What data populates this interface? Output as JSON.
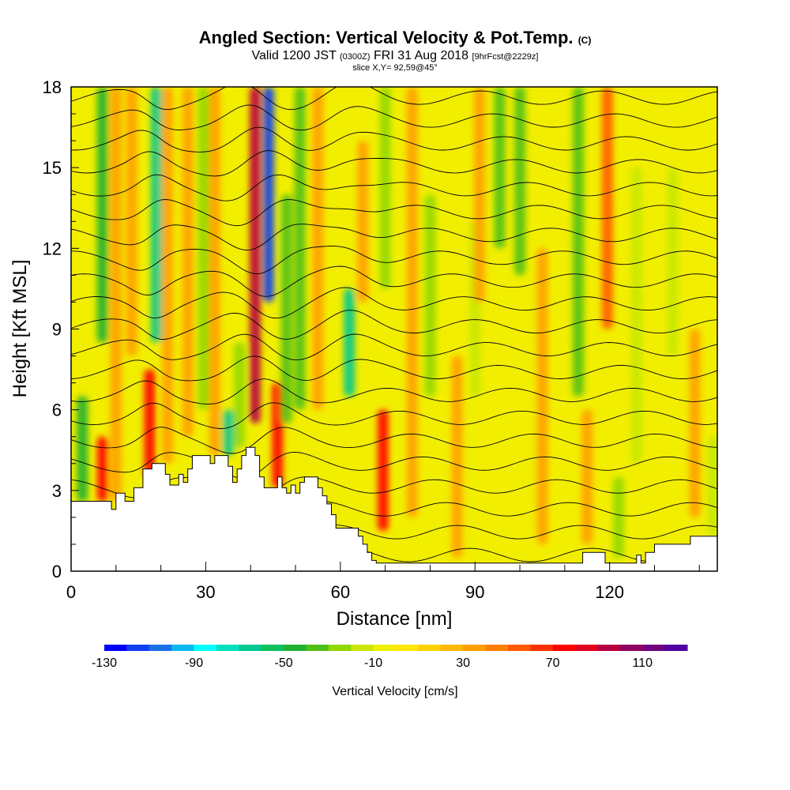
{
  "title": {
    "main": "Angled Section: Vertical Velocity & Pot.Temp.",
    "main_suffix": "(C)",
    "valid_prefix": "Valid 1200 JST",
    "valid_utc": "(0300Z)",
    "valid_date": "FRI 31 Aug 2018",
    "forecast": "[9hrFcst@2229z]",
    "slice": "slice X,Y= 92,59@45°"
  },
  "chart_data": {
    "type": "heatmap",
    "xlabel": "Distance [nm]",
    "ylabel": "Height [Kft MSL]",
    "xlim": [
      0,
      144
    ],
    "ylim": [
      0,
      18
    ],
    "x_ticks": [
      0,
      30,
      60,
      90,
      120
    ],
    "y_ticks": [
      0,
      3,
      6,
      9,
      12,
      15,
      18
    ],
    "colorbar": {
      "title": "Vertical Velocity [cm/s]",
      "min": -130,
      "max": 130,
      "step": 10,
      "labels": [
        -130,
        -90,
        -50,
        -10,
        30,
        70,
        110
      ],
      "colors": [
        "#0000ff",
        "#1040f0",
        "#1c70e8",
        "#0bb8f0",
        "#00ffff",
        "#00e0c0",
        "#00c890",
        "#0cc060",
        "#20b030",
        "#50c018",
        "#90d800",
        "#c8e800",
        "#f0f000",
        "#ffe800",
        "#ffd000",
        "#ffb800",
        "#ff9e00",
        "#ff8000",
        "#ff5a00",
        "#ff3000",
        "#ff0000",
        "#e00020",
        "#b80040",
        "#900060",
        "#700080",
        "#5000a0"
      ]
    },
    "background_color": "#f2ee00",
    "terrain_height_kft": [
      [
        0,
        2.6
      ],
      [
        9,
        2.6
      ],
      [
        9,
        2.3
      ],
      [
        10,
        2.3
      ],
      [
        10,
        2.9
      ],
      [
        12,
        2.9
      ],
      [
        12,
        2.6
      ],
      [
        14,
        2.6
      ],
      [
        14,
        3.1
      ],
      [
        16,
        3.1
      ],
      [
        16,
        3.8
      ],
      [
        18,
        3.8
      ],
      [
        18,
        4.0
      ],
      [
        21,
        4.0
      ],
      [
        21,
        3.6
      ],
      [
        22,
        3.6
      ],
      [
        22,
        3.2
      ],
      [
        24,
        3.2
      ],
      [
        24,
        3.6
      ],
      [
        25,
        3.6
      ],
      [
        25,
        3.3
      ],
      [
        26,
        3.3
      ],
      [
        26,
        3.8
      ],
      [
        27,
        3.8
      ],
      [
        27,
        4.3
      ],
      [
        31,
        4.3
      ],
      [
        31,
        4.0
      ],
      [
        32,
        4.0
      ],
      [
        32,
        4.3
      ],
      [
        35,
        4.3
      ],
      [
        35,
        3.9
      ],
      [
        36,
        3.9
      ],
      [
        36,
        3.3
      ],
      [
        37,
        3.3
      ],
      [
        37,
        3.8
      ],
      [
        38,
        3.8
      ],
      [
        38,
        4.3
      ],
      [
        39,
        4.3
      ],
      [
        39,
        4.6
      ],
      [
        41,
        4.6
      ],
      [
        41,
        4.3
      ],
      [
        42,
        4.3
      ],
      [
        42,
        3.5
      ],
      [
        43,
        3.5
      ],
      [
        43,
        3.1
      ],
      [
        46,
        3.1
      ],
      [
        46,
        3.5
      ],
      [
        47,
        3.5
      ],
      [
        47,
        3.1
      ],
      [
        48,
        3.1
      ],
      [
        48,
        2.9
      ],
      [
        49,
        2.9
      ],
      [
        49,
        3.2
      ],
      [
        50,
        3.2
      ],
      [
        50,
        2.9
      ],
      [
        51,
        2.9
      ],
      [
        51,
        3.3
      ],
      [
        52,
        3.3
      ],
      [
        52,
        3.5
      ],
      [
        55,
        3.5
      ],
      [
        55,
        3.1
      ],
      [
        56,
        3.1
      ],
      [
        56,
        2.8
      ],
      [
        57,
        2.8
      ],
      [
        57,
        2.5
      ],
      [
        58,
        2.5
      ],
      [
        58,
        2.1
      ],
      [
        59,
        2.1
      ],
      [
        59,
        1.6
      ],
      [
        64,
        1.6
      ],
      [
        64,
        1.3
      ],
      [
        65,
        1.3
      ],
      [
        65,
        1.0
      ],
      [
        66,
        1.0
      ],
      [
        66,
        0.7
      ],
      [
        67,
        0.7
      ],
      [
        67,
        0.4
      ],
      [
        68,
        0.4
      ],
      [
        68,
        0.3
      ],
      [
        114,
        0.3
      ],
      [
        114,
        0.7
      ],
      [
        119,
        0.7
      ],
      [
        119,
        0.3
      ],
      [
        126,
        0.3
      ],
      [
        126,
        0.6
      ],
      [
        127,
        0.6
      ],
      [
        127,
        0.3
      ],
      [
        128,
        0.3
      ],
      [
        128,
        0.7
      ],
      [
        130,
        0.7
      ],
      [
        130,
        1.0
      ],
      [
        138,
        1.0
      ],
      [
        138,
        1.3
      ],
      [
        144,
        1.3
      ]
    ],
    "vertical_velocity_bands": [
      {
        "x": 2.5,
        "y0": 2.6,
        "y1": 6.5,
        "value": -50
      },
      {
        "x": 7,
        "y0": 2.6,
        "y1": 5.0,
        "value": 70
      },
      {
        "x": 7,
        "y0": 8.5,
        "y1": 18,
        "value": -50
      },
      {
        "x": 10,
        "y0": 2.6,
        "y1": 18,
        "value": 30
      },
      {
        "x": 13.5,
        "y0": 8.0,
        "y1": 18,
        "value": 30
      },
      {
        "x": 17.5,
        "y0": 3.5,
        "y1": 7.5,
        "value": 70
      },
      {
        "x": 19,
        "y0": 8.5,
        "y1": 18,
        "value": -70
      },
      {
        "x": 21.5,
        "y0": 4.0,
        "y1": 18,
        "value": 30
      },
      {
        "x": 26,
        "y0": 5.0,
        "y1": 18,
        "value": 30
      },
      {
        "x": 29.5,
        "y0": 6.0,
        "y1": 18,
        "value": -30
      },
      {
        "x": 32,
        "y0": 4.3,
        "y1": 18,
        "value": 30
      },
      {
        "x": 35,
        "y0": 4.3,
        "y1": 6.0,
        "value": -70
      },
      {
        "x": 37.5,
        "y0": 4.6,
        "y1": 8.5,
        "value": -30
      },
      {
        "x": 41,
        "y0": 5.5,
        "y1": 18,
        "value": 90
      },
      {
        "x": 44,
        "y0": 10.0,
        "y1": 18,
        "value": -120
      },
      {
        "x": 46,
        "y0": 3.1,
        "y1": 7.0,
        "value": 70
      },
      {
        "x": 48,
        "y0": 5.5,
        "y1": 14,
        "value": -40
      },
      {
        "x": 51,
        "y0": 6.0,
        "y1": 18,
        "value": -40
      },
      {
        "x": 55,
        "y0": 6.0,
        "y1": 18,
        "value": 30
      },
      {
        "x": 62,
        "y0": 6.5,
        "y1": 10.5,
        "value": -70
      },
      {
        "x": 65,
        "y0": 10.0,
        "y1": 16.0,
        "value": 30
      },
      {
        "x": 69.5,
        "y0": 1.5,
        "y1": 6.0,
        "value": 70
      },
      {
        "x": 70,
        "y0": 10.5,
        "y1": 18,
        "value": -30
      },
      {
        "x": 76,
        "y0": 2.0,
        "y1": 18,
        "value": 30
      },
      {
        "x": 80,
        "y0": 6.5,
        "y1": 14,
        "value": -30
      },
      {
        "x": 86,
        "y0": 0.5,
        "y1": 8.0,
        "value": 30
      },
      {
        "x": 90,
        "y0": 6.5,
        "y1": 13.0,
        "value": -20
      },
      {
        "x": 91,
        "y0": 10.0,
        "y1": 18,
        "value": 30
      },
      {
        "x": 95.5,
        "y0": 12.0,
        "y1": 18,
        "value": -40
      },
      {
        "x": 100,
        "y0": 11.0,
        "y1": 18,
        "value": -40
      },
      {
        "x": 105,
        "y0": 1.0,
        "y1": 12.0,
        "value": 30
      },
      {
        "x": 113,
        "y0": 6.5,
        "y1": 18,
        "value": -40
      },
      {
        "x": 115,
        "y0": 1.0,
        "y1": 6.0,
        "value": 30
      },
      {
        "x": 119.5,
        "y0": 9.0,
        "y1": 18,
        "value": 50
      },
      {
        "x": 122,
        "y0": 0.5,
        "y1": 3.5,
        "value": -30
      },
      {
        "x": 126,
        "y0": 4.0,
        "y1": 15.0,
        "value": -20
      },
      {
        "x": 134,
        "y0": 8.0,
        "y1": 15.0,
        "value": -20
      },
      {
        "x": 139,
        "y0": 2.0,
        "y1": 9.0,
        "value": 30
      },
      {
        "x": 143,
        "y0": 1.3,
        "y1": 5.0,
        "value": -20
      }
    ]
  }
}
